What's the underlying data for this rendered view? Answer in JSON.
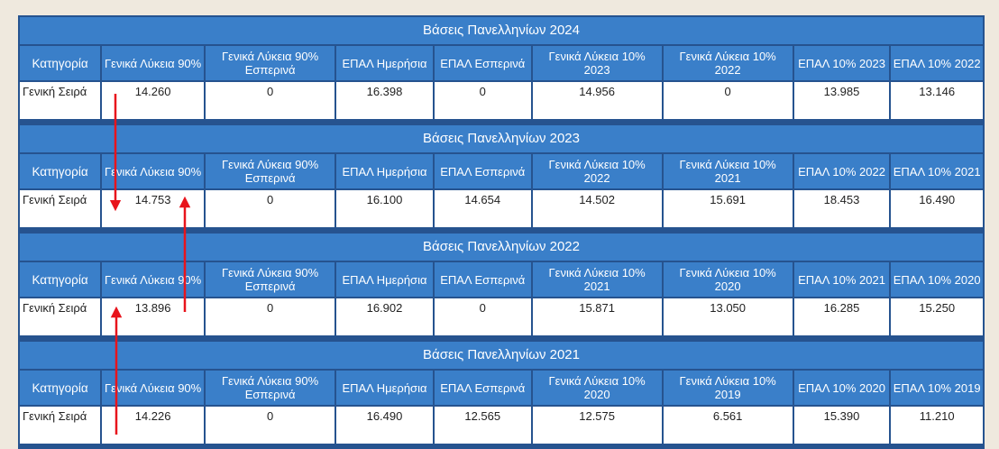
{
  "blocks": [
    {
      "title": "Βάσεις Πανελληνίων 2024",
      "headers": [
        "Κατηγορία",
        "Γενικά Λύκεια 90%",
        "Γενικά Λύκεια 90% Εσπερινά",
        "ΕΠΑΛ Ημερήσια",
        "ΕΠΑΛ Εσπερινά",
        "Γενικά Λύκεια 10% 2023",
        "Γενικά Λύκεια 10% 2022",
        "ΕΠΑΛ 10% 2023",
        "ΕΠΑΛ 10% 2022"
      ],
      "row": [
        "Γενική Σειρά",
        "14.260",
        "0",
        "16.398",
        "0",
        "14.956",
        "0",
        "13.985",
        "13.146"
      ]
    },
    {
      "title": "Βάσεις Πανελληνίων 2023",
      "headers": [
        "Κατηγορία",
        "Γενικά Λύκεια 90%",
        "Γενικά Λύκεια 90% Εσπερινά",
        "ΕΠΑΛ Ημερήσια",
        "ΕΠΑΛ Εσπερινά",
        "Γενικά Λύκεια 10% 2022",
        "Γενικά Λύκεια 10% 2021",
        "ΕΠΑΛ 10% 2022",
        "ΕΠΑΛ 10% 2021"
      ],
      "row": [
        "Γενική Σειρά",
        "14.753",
        "0",
        "16.100",
        "14.654",
        "14.502",
        "15.691",
        "18.453",
        "16.490"
      ]
    },
    {
      "title": "Βάσεις Πανελληνίων 2022",
      "headers": [
        "Κατηγορία",
        "Γενικά Λύκεια 90%",
        "Γενικά Λύκεια 90% Εσπερινά",
        "ΕΠΑΛ Ημερήσια",
        "ΕΠΑΛ Εσπερινά",
        "Γενικά Λύκεια 10% 2021",
        "Γενικά Λύκεια 10% 2020",
        "ΕΠΑΛ 10% 2021",
        "ΕΠΑΛ 10% 2020"
      ],
      "row": [
        "Γενική Σειρά",
        "13.896",
        "0",
        "16.902",
        "0",
        "15.871",
        "13.050",
        "16.285",
        "15.250"
      ]
    },
    {
      "title": "Βάσεις Πανελληνίων 2021",
      "headers": [
        "Κατηγορία",
        "Γενικά Λύκεια 90%",
        "Γενικά Λύκεια 90% Εσπερινά",
        "ΕΠΑΛ Ημερήσια",
        "ΕΠΑΛ Εσπερινά",
        "Γενικά Λύκεια 10% 2020",
        "Γενικά Λύκεια 10% 2019",
        "ΕΠΑΛ 10% 2020",
        "ΕΠΑΛ 10% 2019"
      ],
      "row": [
        "Γενική Σειρά",
        "14.226",
        "0",
        "16.490",
        "12.565",
        "12.575",
        "6.561",
        "15.390",
        "11.210"
      ]
    }
  ],
  "annotation_color": "#e8141c"
}
